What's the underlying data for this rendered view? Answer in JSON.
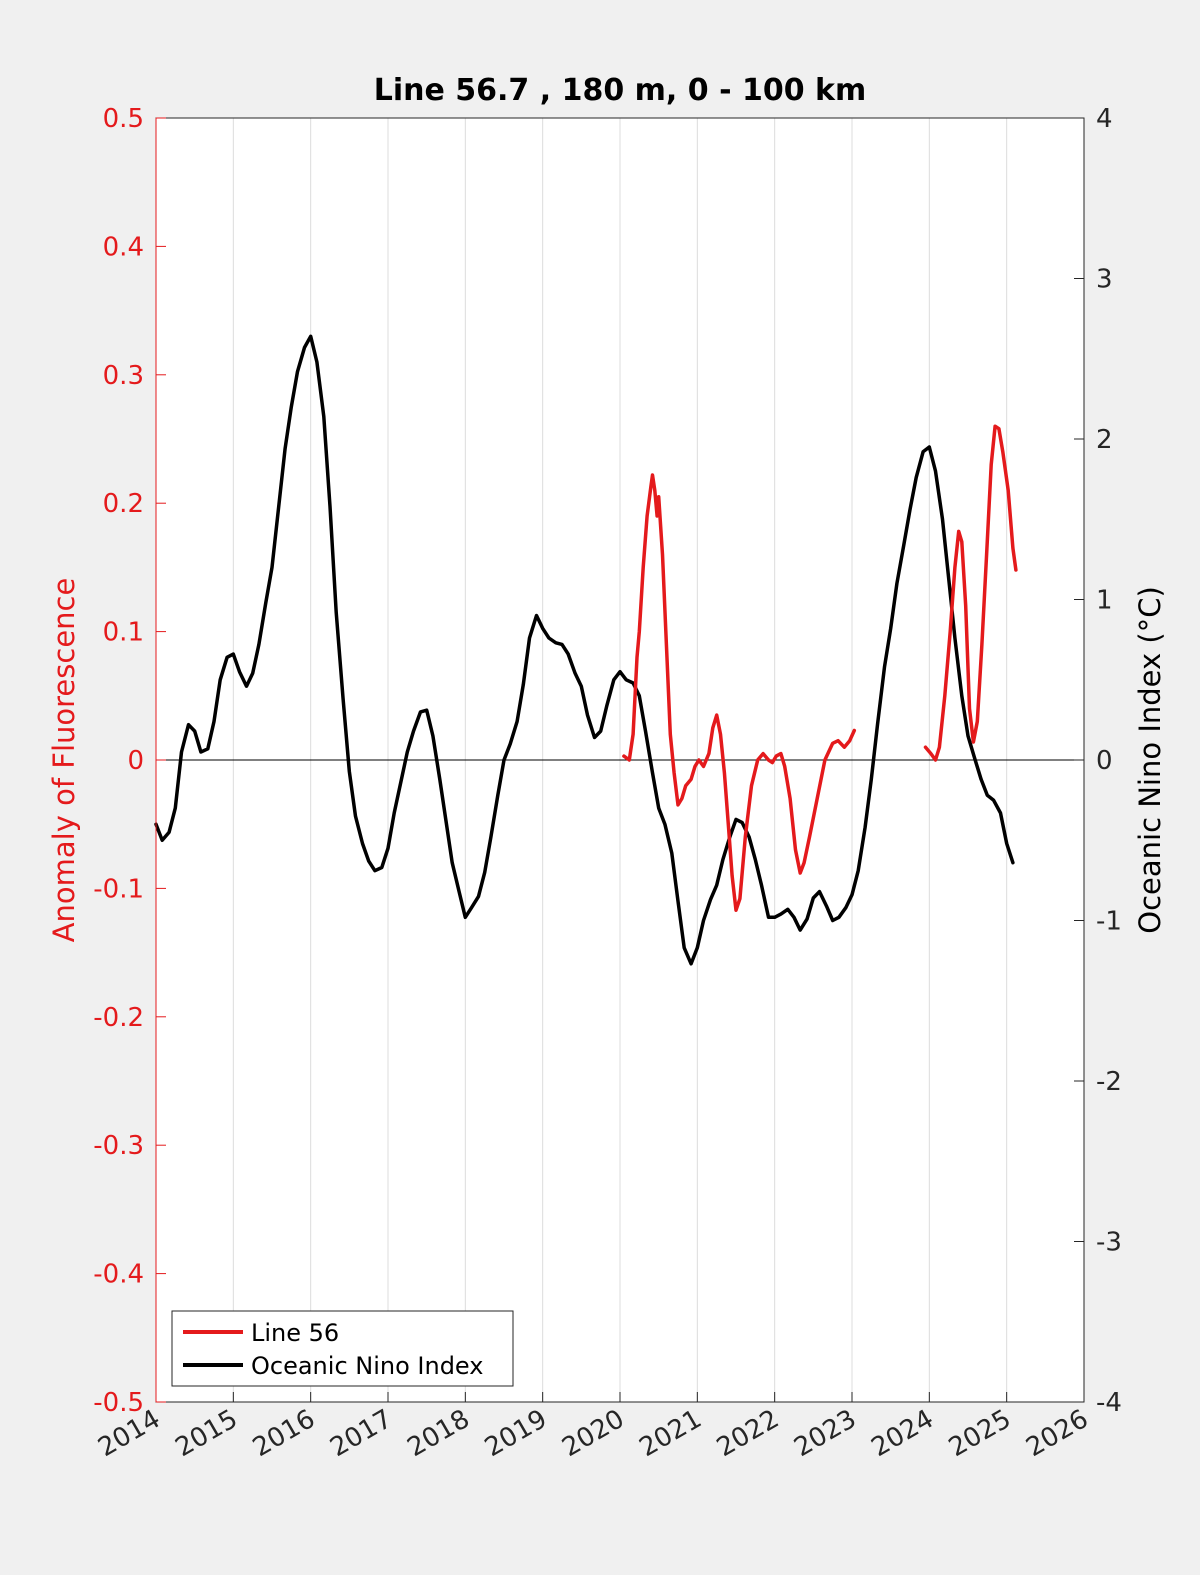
{
  "chart_data": {
    "type": "line",
    "title": "Line 56.7 , 180 m, 0 - 100 km",
    "xlabel": "",
    "ylabel_left": "Anomaly of Fluorescence",
    "ylabel_right": "Oceanic Nino Index (°C)",
    "xlim": [
      2014,
      2026
    ],
    "ylim_left": [
      -0.5,
      0.5
    ],
    "ylim_right": [
      -4,
      4
    ],
    "x_ticks": [
      "2014",
      "2015",
      "2016",
      "2017",
      "2018",
      "2019",
      "2020",
      "2021",
      "2022",
      "2023",
      "2024",
      "2025",
      "2026"
    ],
    "y_left_ticks": [
      "-0.5",
      "-0.4",
      "-0.3",
      "-0.2",
      "-0.1",
      "0",
      "0.1",
      "0.2",
      "0.3",
      "0.4",
      "0.5"
    ],
    "y_right_ticks": [
      "-4",
      "-3",
      "-2",
      "-1",
      "0",
      "1",
      "2",
      "3",
      "4"
    ],
    "grid": "vertical",
    "legend_position": "bottom-left",
    "colors": {
      "line56": "#e41a1c",
      "oni": "#000000",
      "left_axis": "#e41a1c",
      "right_axis": "#000000"
    },
    "series": [
      {
        "name": "Line 56",
        "axis": "left",
        "color": "#e41a1c",
        "segments": [
          [
            [
              2020.05,
              0.003
            ],
            [
              2020.12,
              0.0
            ],
            [
              2020.17,
              0.02
            ],
            [
              2020.22,
              0.08
            ],
            [
              2020.25,
              0.1
            ],
            [
              2020.3,
              0.15
            ],
            [
              2020.35,
              0.19
            ],
            [
              2020.4,
              0.213
            ],
            [
              2020.42,
              0.222
            ],
            [
              2020.45,
              0.21
            ],
            [
              2020.48,
              0.19
            ],
            [
              2020.5,
              0.205
            ],
            [
              2020.55,
              0.16
            ],
            [
              2020.6,
              0.09
            ],
            [
              2020.65,
              0.02
            ],
            [
              2020.7,
              -0.01
            ],
            [
              2020.75,
              -0.035
            ],
            [
              2020.8,
              -0.03
            ],
            [
              2020.85,
              -0.02
            ],
            [
              2020.92,
              -0.015
            ],
            [
              2020.97,
              -0.005
            ],
            [
              2021.02,
              0.0
            ],
            [
              2021.08,
              -0.005
            ],
            [
              2021.15,
              0.005
            ],
            [
              2021.2,
              0.025
            ],
            [
              2021.25,
              0.035
            ],
            [
              2021.3,
              0.02
            ],
            [
              2021.35,
              -0.01
            ],
            [
              2021.4,
              -0.05
            ],
            [
              2021.45,
              -0.09
            ],
            [
              2021.5,
              -0.117
            ],
            [
              2021.55,
              -0.108
            ],
            [
              2021.62,
              -0.06
            ],
            [
              2021.7,
              -0.02
            ],
            [
              2021.78,
              0.0
            ],
            [
              2021.85,
              0.005
            ],
            [
              2021.92,
              0.0
            ],
            [
              2021.97,
              -0.002
            ],
            [
              2022.02,
              0.003
            ],
            [
              2022.08,
              0.005
            ],
            [
              2022.13,
              -0.005
            ],
            [
              2022.2,
              -0.03
            ],
            [
              2022.27,
              -0.07
            ],
            [
              2022.33,
              -0.088
            ],
            [
              2022.38,
              -0.08
            ],
            [
              2022.45,
              -0.06
            ],
            [
              2022.55,
              -0.03
            ],
            [
              2022.65,
              0.0
            ],
            [
              2022.75,
              0.013
            ],
            [
              2022.82,
              0.015
            ],
            [
              2022.9,
              0.01
            ],
            [
              2022.97,
              0.015
            ],
            [
              2023.03,
              0.023
            ]
          ],
          [
            [
              2023.95,
              0.01
            ],
            [
              2024.02,
              0.005
            ],
            [
              2024.08,
              0.0
            ],
            [
              2024.13,
              0.01
            ],
            [
              2024.2,
              0.05
            ],
            [
              2024.27,
              0.1
            ],
            [
              2024.33,
              0.15
            ],
            [
              2024.38,
              0.178
            ],
            [
              2024.42,
              0.17
            ],
            [
              2024.47,
              0.12
            ],
            [
              2024.52,
              0.04
            ],
            [
              2024.57,
              0.014
            ],
            [
              2024.62,
              0.03
            ],
            [
              2024.68,
              0.09
            ],
            [
              2024.74,
              0.16
            ],
            [
              2024.8,
              0.23
            ],
            [
              2024.85,
              0.26
            ],
            [
              2024.9,
              0.258
            ],
            [
              2024.95,
              0.24
            ],
            [
              2025.02,
              0.21
            ],
            [
              2025.08,
              0.165
            ],
            [
              2025.12,
              0.148
            ]
          ]
        ]
      },
      {
        "name": "Oceanic Nino Index",
        "axis": "right",
        "color": "#000000",
        "segments": [
          [
            [
              2014.0,
              -0.4
            ],
            [
              2014.08,
              -0.5
            ],
            [
              2014.17,
              -0.45
            ],
            [
              2014.25,
              -0.3
            ],
            [
              2014.33,
              0.05
            ],
            [
              2014.42,
              0.22
            ],
            [
              2014.5,
              0.18
            ],
            [
              2014.58,
              0.05
            ],
            [
              2014.67,
              0.07
            ],
            [
              2014.75,
              0.24
            ],
            [
              2014.83,
              0.5
            ],
            [
              2014.92,
              0.64
            ],
            [
              2015.0,
              0.66
            ],
            [
              2015.08,
              0.55
            ],
            [
              2015.17,
              0.46
            ],
            [
              2015.25,
              0.54
            ],
            [
              2015.33,
              0.72
            ],
            [
              2015.42,
              0.98
            ],
            [
              2015.5,
              1.2
            ],
            [
              2015.58,
              1.55
            ],
            [
              2015.67,
              1.94
            ],
            [
              2015.75,
              2.2
            ],
            [
              2015.83,
              2.42
            ],
            [
              2015.92,
              2.57
            ],
            [
              2016.0,
              2.64
            ],
            [
              2016.08,
              2.48
            ],
            [
              2016.17,
              2.14
            ],
            [
              2016.25,
              1.58
            ],
            [
              2016.33,
              0.92
            ],
            [
              2016.42,
              0.38
            ],
            [
              2016.5,
              -0.07
            ],
            [
              2016.58,
              -0.35
            ],
            [
              2016.67,
              -0.52
            ],
            [
              2016.75,
              -0.63
            ],
            [
              2016.83,
              -0.69
            ],
            [
              2016.92,
              -0.67
            ],
            [
              2017.0,
              -0.55
            ],
            [
              2017.08,
              -0.33
            ],
            [
              2017.17,
              -0.13
            ],
            [
              2017.25,
              0.05
            ],
            [
              2017.33,
              0.18
            ],
            [
              2017.42,
              0.3
            ],
            [
              2017.5,
              0.31
            ],
            [
              2017.58,
              0.15
            ],
            [
              2017.67,
              -0.12
            ],
            [
              2017.75,
              -0.38
            ],
            [
              2017.83,
              -0.64
            ],
            [
              2017.92,
              -0.82
            ],
            [
              2018.0,
              -0.98
            ],
            [
              2018.08,
              -0.92
            ],
            [
              2018.17,
              -0.85
            ],
            [
              2018.25,
              -0.7
            ],
            [
              2018.33,
              -0.48
            ],
            [
              2018.42,
              -0.22
            ],
            [
              2018.5,
              0.0
            ],
            [
              2018.58,
              0.1
            ],
            [
              2018.67,
              0.24
            ],
            [
              2018.75,
              0.47
            ],
            [
              2018.83,
              0.76
            ],
            [
              2018.92,
              0.9
            ],
            [
              2019.0,
              0.82
            ],
            [
              2019.08,
              0.76
            ],
            [
              2019.17,
              0.73
            ],
            [
              2019.25,
              0.72
            ],
            [
              2019.33,
              0.66
            ],
            [
              2019.42,
              0.54
            ],
            [
              2019.5,
              0.46
            ],
            [
              2019.58,
              0.28
            ],
            [
              2019.67,
              0.14
            ],
            [
              2019.75,
              0.18
            ],
            [
              2019.83,
              0.34
            ],
            [
              2019.92,
              0.5
            ],
            [
              2020.0,
              0.55
            ],
            [
              2020.08,
              0.5
            ],
            [
              2020.17,
              0.48
            ],
            [
              2020.25,
              0.4
            ],
            [
              2020.33,
              0.18
            ],
            [
              2020.42,
              -0.08
            ],
            [
              2020.5,
              -0.3
            ],
            [
              2020.58,
              -0.4
            ],
            [
              2020.67,
              -0.58
            ],
            [
              2020.75,
              -0.88
            ],
            [
              2020.83,
              -1.17
            ],
            [
              2020.92,
              -1.27
            ],
            [
              2021.0,
              -1.17
            ],
            [
              2021.08,
              -1.0
            ],
            [
              2021.17,
              -0.87
            ],
            [
              2021.25,
              -0.78
            ],
            [
              2021.33,
              -0.62
            ],
            [
              2021.42,
              -0.48
            ],
            [
              2021.5,
              -0.37
            ],
            [
              2021.58,
              -0.39
            ],
            [
              2021.67,
              -0.48
            ],
            [
              2021.75,
              -0.62
            ],
            [
              2021.83,
              -0.78
            ],
            [
              2021.92,
              -0.98
            ],
            [
              2022.0,
              -0.98
            ],
            [
              2022.08,
              -0.96
            ],
            [
              2022.17,
              -0.93
            ],
            [
              2022.25,
              -0.98
            ],
            [
              2022.33,
              -1.06
            ],
            [
              2022.42,
              -0.99
            ],
            [
              2022.5,
              -0.86
            ],
            [
              2022.58,
              -0.82
            ],
            [
              2022.67,
              -0.91
            ],
            [
              2022.75,
              -1.0
            ],
            [
              2022.83,
              -0.98
            ],
            [
              2022.92,
              -0.92
            ],
            [
              2023.0,
              -0.84
            ],
            [
              2023.08,
              -0.69
            ],
            [
              2023.17,
              -0.42
            ],
            [
              2023.25,
              -0.12
            ],
            [
              2023.33,
              0.22
            ],
            [
              2023.42,
              0.58
            ],
            [
              2023.5,
              0.82
            ],
            [
              2023.58,
              1.1
            ],
            [
              2023.67,
              1.34
            ],
            [
              2023.75,
              1.56
            ],
            [
              2023.83,
              1.76
            ],
            [
              2023.92,
              1.92
            ],
            [
              2024.0,
              1.95
            ],
            [
              2024.08,
              1.8
            ],
            [
              2024.17,
              1.5
            ],
            [
              2024.25,
              1.13
            ],
            [
              2024.33,
              0.76
            ],
            [
              2024.42,
              0.4
            ],
            [
              2024.5,
              0.15
            ],
            [
              2024.58,
              0.02
            ],
            [
              2024.67,
              -0.12
            ],
            [
              2024.75,
              -0.22
            ],
            [
              2024.83,
              -0.25
            ],
            [
              2024.92,
              -0.33
            ],
            [
              2025.0,
              -0.52
            ],
            [
              2025.08,
              -0.64
            ]
          ]
        ]
      }
    ]
  }
}
